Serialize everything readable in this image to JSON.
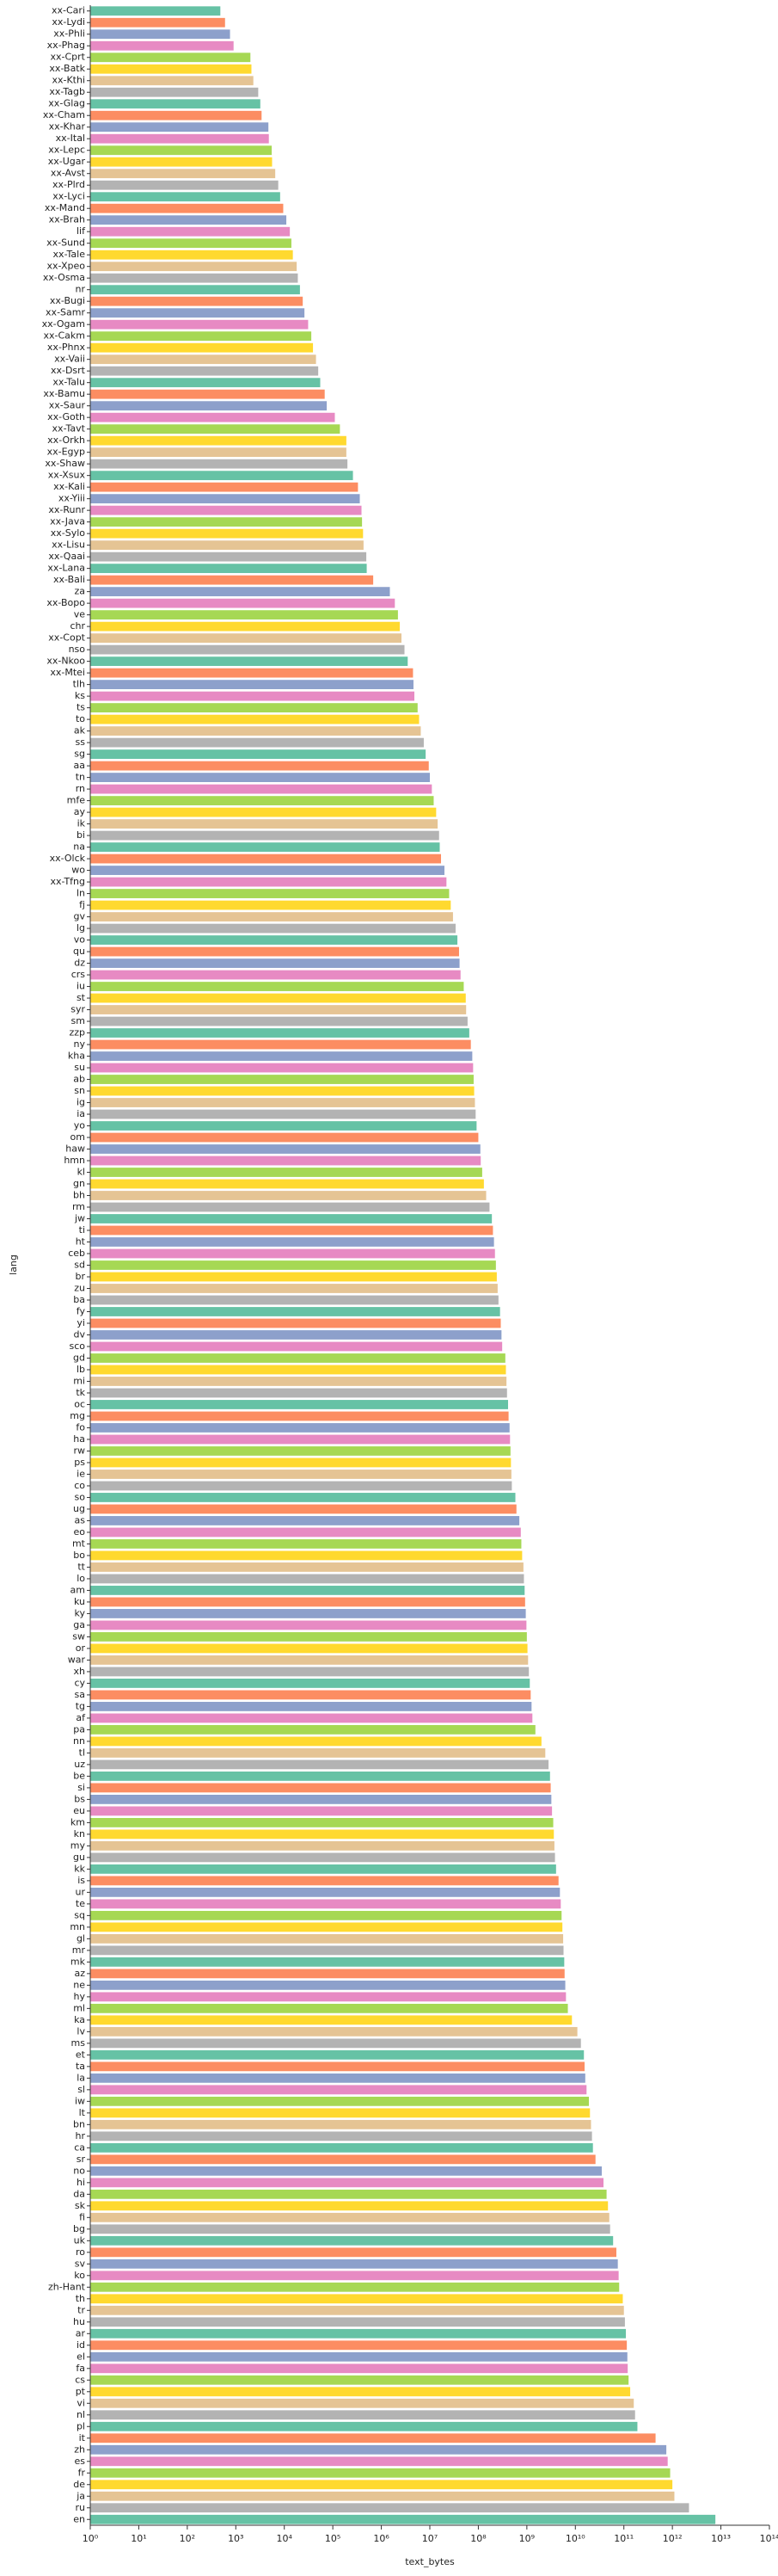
{
  "chart_data": {
    "type": "barh",
    "xlabel": "text_bytes",
    "ylabel": "lang",
    "xscale": "log",
    "palette": [
      "#66c2a5",
      "#fc8d62",
      "#8da0cb",
      "#e78ac3",
      "#a6d854",
      "#ffd92f",
      "#e5c494",
      "#b3b3b3"
    ],
    "categories": [
      "xx-Cari",
      "xx-Lydi",
      "xx-Phli",
      "xx-Phag",
      "xx-Cprt",
      "xx-Batk",
      "xx-Kthi",
      "xx-Tagb",
      "xx-Glag",
      "xx-Cham",
      "xx-Khar",
      "xx-Ital",
      "xx-Lepc",
      "xx-Ugar",
      "xx-Avst",
      "xx-Plrd",
      "xx-Lyci",
      "xx-Mand",
      "xx-Brah",
      "lif",
      "xx-Sund",
      "xx-Tale",
      "xx-Xpeo",
      "xx-Osma",
      "nr",
      "xx-Bugi",
      "xx-Samr",
      "xx-Ogam",
      "xx-Cakm",
      "xx-Phnx",
      "xx-Vaii",
      "xx-Dsrt",
      "xx-Talu",
      "xx-Bamu",
      "xx-Saur",
      "xx-Goth",
      "xx-Tavt",
      "xx-Orkh",
      "xx-Egyp",
      "xx-Shaw",
      "xx-Xsux",
      "xx-Kali",
      "xx-Yiii",
      "xx-Runr",
      "xx-Java",
      "xx-Sylo",
      "xx-Lisu",
      "xx-Qaai",
      "xx-Lana",
      "xx-Bali",
      "za",
      "xx-Bopo",
      "ve",
      "chr",
      "xx-Copt",
      "nso",
      "xx-Nkoo",
      "xx-Mtei",
      "tlh",
      "ks",
      "ts",
      "to",
      "ak",
      "ss",
      "sg",
      "aa",
      "tn",
      "rn",
      "mfe",
      "ay",
      "ik",
      "bi",
      "na",
      "xx-Olck",
      "wo",
      "xx-Tfng",
      "ln",
      "fj",
      "gv",
      "lg",
      "vo",
      "qu",
      "dz",
      "crs",
      "iu",
      "st",
      "syr",
      "sm",
      "zzp",
      "ny",
      "kha",
      "su",
      "ab",
      "sn",
      "ig",
      "ia",
      "yo",
      "om",
      "haw",
      "hmn",
      "kl",
      "gn",
      "bh",
      "rm",
      "jw",
      "ti",
      "ht",
      "ceb",
      "sd",
      "br",
      "zu",
      "ba",
      "fy",
      "yi",
      "dv",
      "sco",
      "gd",
      "lb",
      "mi",
      "tk",
      "oc",
      "mg",
      "fo",
      "ha",
      "rw",
      "ps",
      "ie",
      "co",
      "so",
      "ug",
      "as",
      "eo",
      "mt",
      "bo",
      "tt",
      "lo",
      "am",
      "ku",
      "ky",
      "ga",
      "sw",
      "or",
      "war",
      "xh",
      "cy",
      "sa",
      "tg",
      "af",
      "pa",
      "nn",
      "tl",
      "uz",
      "be",
      "si",
      "bs",
      "eu",
      "km",
      "kn",
      "my",
      "gu",
      "kk",
      "is",
      "ur",
      "te",
      "sq",
      "mn",
      "gl",
      "mr",
      "mk",
      "az",
      "ne",
      "hy",
      "ml",
      "ka",
      "lv",
      "ms",
      "et",
      "ta",
      "la",
      "sl",
      "iw",
      "lt",
      "bn",
      "hr",
      "ca",
      "sr",
      "no",
      "hi",
      "da",
      "sk",
      "fi",
      "bg",
      "uk",
      "ro",
      "sv",
      "ko",
      "zh-Hant",
      "th",
      "tr",
      "hu",
      "ar",
      "id",
      "el",
      "fa",
      "cs",
      "pt",
      "vi",
      "nl",
      "pl",
      "it",
      "zh",
      "es",
      "fr",
      "de",
      "ja",
      "ru",
      "en"
    ],
    "values": [
      480,
      600,
      760,
      900,
      2000,
      2100,
      2300,
      2900,
      3200,
      3400,
      4700,
      4800,
      5500,
      5600,
      6500,
      7500,
      8200,
      9500,
      11000,
      13000,
      14000,
      15000,
      18000,
      19000,
      21000,
      24000,
      26000,
      31000,
      36000,
      39000,
      45000,
      50000,
      55000,
      68000,
      75000,
      110000,
      140000,
      190000,
      190000,
      200000,
      260000,
      330000,
      360000,
      390000,
      400000,
      420000,
      430000,
      490000,
      500000,
      680000,
      1500000.0,
      1900000.0,
      2200000.0,
      2400000.0,
      2600000.0,
      3000000.0,
      3500000.0,
      4500000.0,
      4600000.0,
      4800000.0,
      5600000.0,
      6000000.0,
      6500000.0,
      7500000.0,
      8200000.0,
      9500000.0,
      10000000.0,
      11000000.0,
      12000000.0,
      13500000.0,
      14500000.0,
      15500000.0,
      16000000.0,
      17000000.0,
      20000000.0,
      22000000.0,
      25000000.0,
      27000000.0,
      30000000.0,
      34000000.0,
      37000000.0,
      40000000.0,
      41000000.0,
      43000000.0,
      50000000.0,
      55000000.0,
      56000000.0,
      60000000.0,
      65000000.0,
      70000000.0,
      75000000.0,
      78000000.0,
      80000000.0,
      82000000.0,
      85000000.0,
      88000000.0,
      92000000.0,
      100000000.0,
      110000000.0,
      112000000.0,
      120000000.0,
      130000000.0,
      145000000.0,
      170000000.0,
      190000000.0,
      200000000.0,
      210000000.0,
      220000000.0,
      230000000.0,
      240000000.0,
      250000000.0,
      260000000.0,
      280000000.0,
      290000000.0,
      300000000.0,
      310000000.0,
      360000000.0,
      370000000.0,
      380000000.0,
      390000000.0,
      410000000.0,
      420000000.0,
      440000000.0,
      450000000.0,
      460000000.0,
      470000000.0,
      480000000.0,
      490000000.0,
      580000000.0,
      610000000.0,
      700000000.0,
      750000000.0,
      770000000.0,
      800000000.0,
      850000000.0,
      870000000.0,
      900000000.0,
      920000000.0,
      950000000.0,
      980000000.0,
      1000000000.0,
      1030000000.0,
      1060000000.0,
      1100000000.0,
      1150000000.0,
      1200000000.0,
      1250000000.0,
      1300000000.0,
      1500000000.0,
      2000000000.0,
      2400000000.0,
      2800000000.0,
      3000000000.0,
      3100000000.0,
      3200000000.0,
      3300000000.0,
      3500000000.0,
      3600000000.0,
      3700000000.0,
      3800000000.0,
      4000000000.0,
      4500000000.0,
      4800000000.0,
      5000000000.0,
      5200000000.0,
      5400000000.0,
      5600000000.0,
      5700000000.0,
      5900000000.0,
      6000000000.0,
      6200000000.0,
      6400000000.0,
      7000000000.0,
      8500000000.0,
      11000000000.0,
      13000000000.0,
      15000000000.0,
      15500000000.0,
      16000000000.0,
      17000000000.0,
      19000000000.0,
      20000000000.0,
      21000000000.0,
      22000000000.0,
      23000000000.0,
      26000000000.0,
      35000000000.0,
      38000000000.0,
      44000000000.0,
      47000000000.0,
      50000000000.0,
      52000000000.0,
      60000000000.0,
      70000000000.0,
      75000000000.0,
      78000000000.0,
      80000000000.0,
      95000000000.0,
      100000000000.0,
      105000000000.0,
      110000000000.0,
      115000000000.0,
      118000000000.0,
      120000000000.0,
      125000000000.0,
      135000000000.0,
      160000000000.0,
      170000000000.0,
      190000000000.0,
      450000000000.0,
      750000000000.0,
      800000000000.0,
      900000000000.0,
      1000000000000.0,
      1100000000000.0,
      2200000000000.0,
      7700000000000.0
    ],
    "xlim": [
      1,
      100000000000000.0
    ],
    "xticks": [
      {
        "value": 1,
        "label": "10⁰"
      },
      {
        "value": 10,
        "label": "10¹"
      },
      {
        "value": 100,
        "label": "10²"
      },
      {
        "value": 1000,
        "label": "10³"
      },
      {
        "value": 10000.0,
        "label": "10⁴"
      },
      {
        "value": 100000.0,
        "label": "10⁵"
      },
      {
        "value": 1000000.0,
        "label": "10⁶"
      },
      {
        "value": 10000000.0,
        "label": "10⁷"
      },
      {
        "value": 100000000.0,
        "label": "10⁸"
      },
      {
        "value": 1000000000.0,
        "label": "10⁹"
      },
      {
        "value": 10000000000.0,
        "label": "10¹⁰"
      },
      {
        "value": 100000000000.0,
        "label": "10¹¹"
      },
      {
        "value": 1000000000000.0,
        "label": "10¹²"
      },
      {
        "value": 10000000000000.0,
        "label": "10¹³"
      },
      {
        "value": 100000000000000.0,
        "label": "10¹⁴"
      }
    ]
  }
}
